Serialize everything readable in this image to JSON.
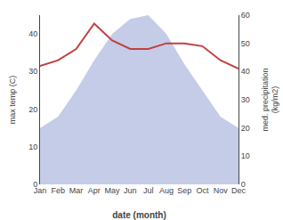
{
  "chart_data": {
    "type": "area",
    "categories": [
      "Jan",
      "Feb",
      "Mar",
      "Apr",
      "May",
      "Jun",
      "Jul",
      "Aug",
      "Sep",
      "Oct",
      "Nov",
      "Dec"
    ],
    "xlabel": "date (month)",
    "ylabel": "max temp (C)",
    "y2label": "med. precipitation\n(kg/m2)",
    "ylim": [
      0,
      45
    ],
    "yticks": [
      0,
      10,
      20,
      30,
      40
    ],
    "y2lim": [
      0,
      60
    ],
    "y2ticks": [
      0,
      10,
      20,
      30,
      40,
      50,
      60
    ],
    "grid": false,
    "series": [
      {
        "type": "area",
        "color": "#c5cce8",
        "values": [
          15,
          18,
          25,
          33,
          40,
          44,
          45,
          40,
          32,
          25,
          18,
          15
        ]
      },
      {
        "type": "line",
        "color": "#c04040",
        "axis": "y2",
        "values": [
          42,
          44,
          48,
          57,
          51,
          48,
          48,
          50,
          50,
          49,
          44,
          41
        ]
      }
    ]
  }
}
